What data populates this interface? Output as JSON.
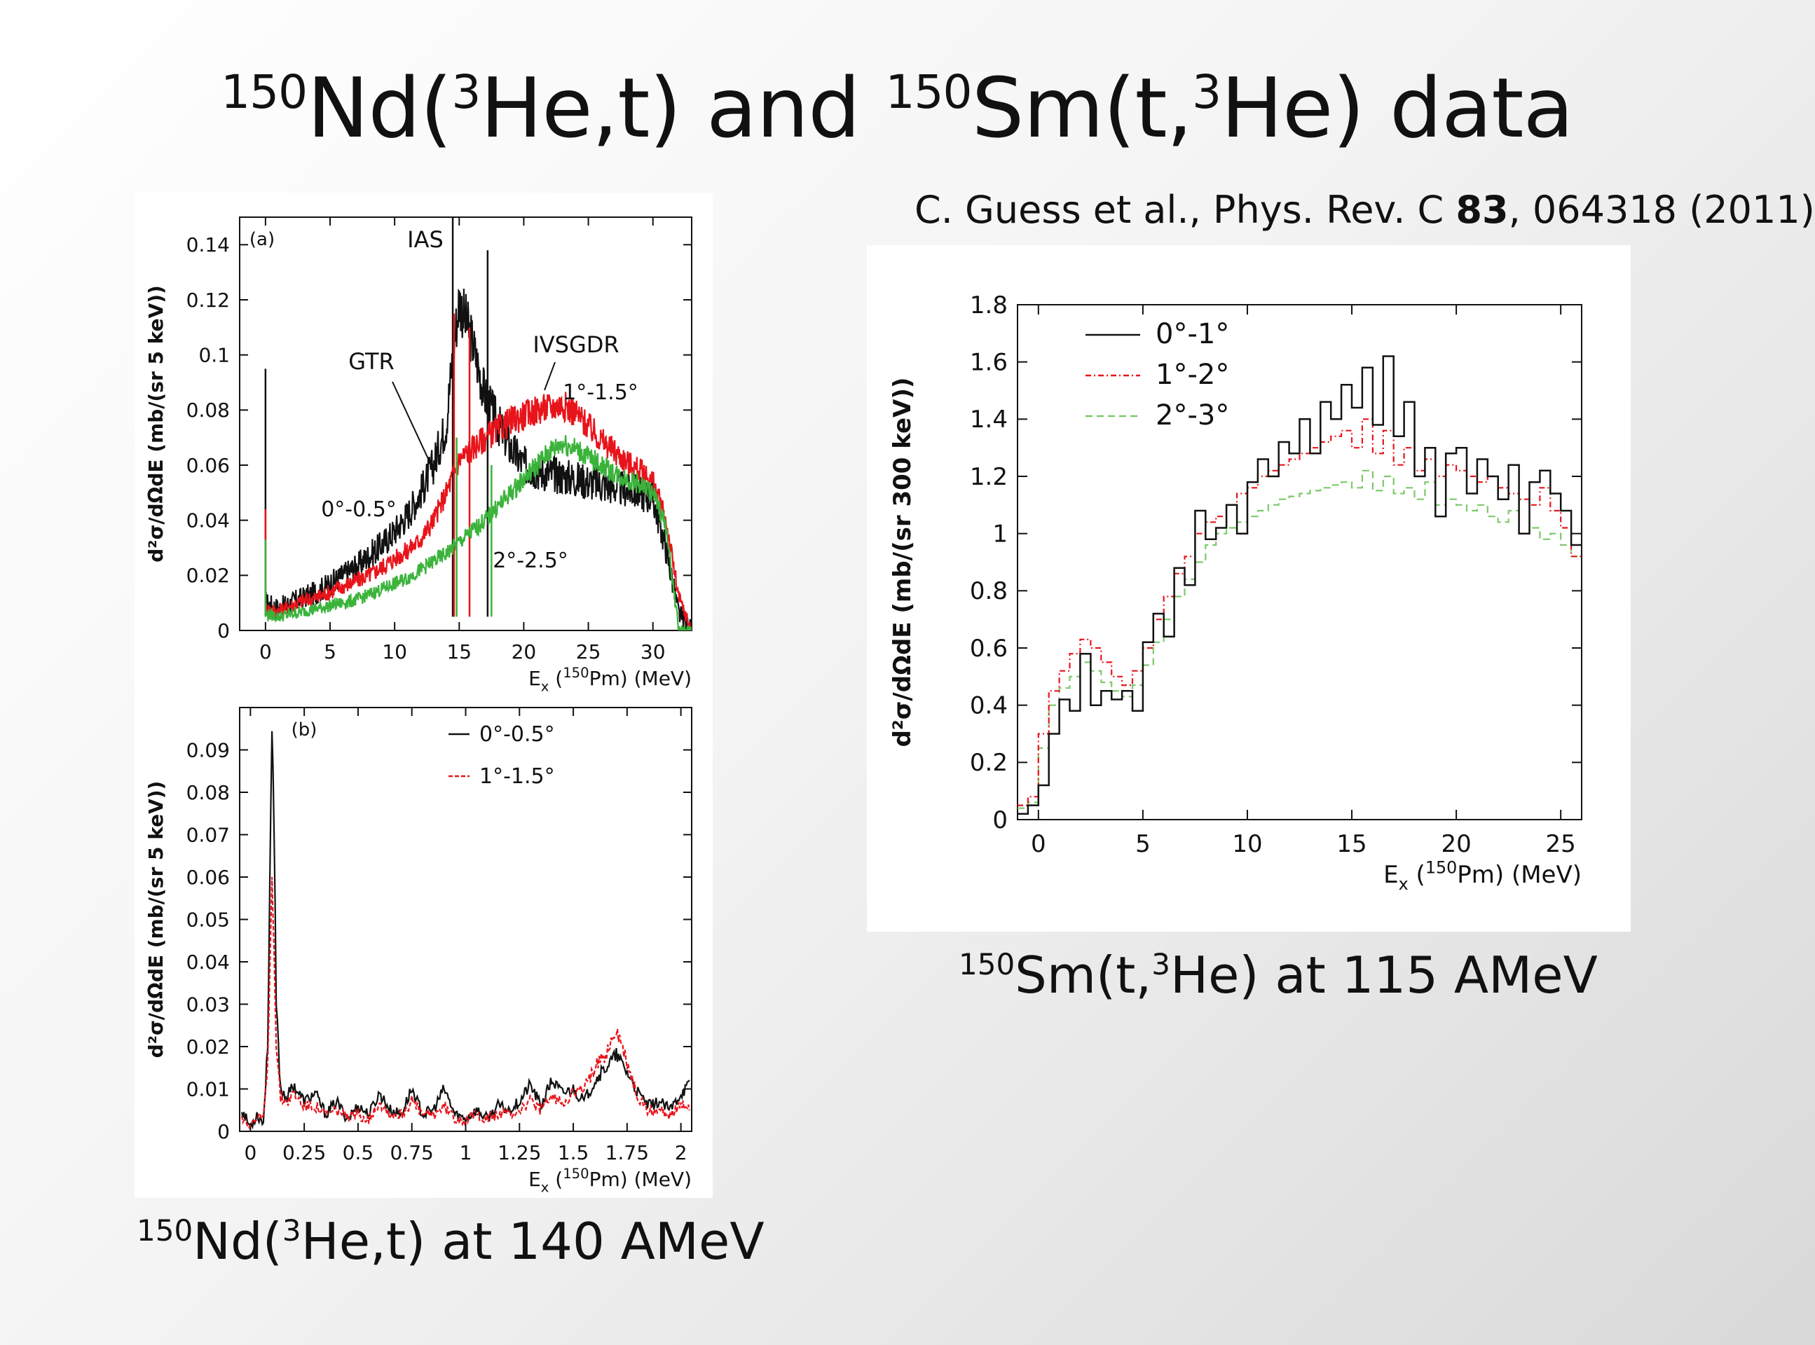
{
  "slide": {
    "title": {
      "part1_sup": "150",
      "part1": "Nd(",
      "part1_sup2": "3",
      "part1_tail": "He,t) and ",
      "part2_sup": "150",
      "part2": "Sm(t,",
      "part2_sup2": "3",
      "part2_tail": "He) data"
    },
    "citation": {
      "pre": "C. Guess et al., Phys. Rev. C ",
      "volume": "83",
      "post": ", 064318 (2011)"
    },
    "caption_left": {
      "sup": "150",
      "a": "Nd(",
      "sup2": "3",
      "b": "He,t) at 140 AMeV"
    },
    "caption_right": {
      "sup": "150",
      "a": "Sm(t,",
      "sup2": "3",
      "b": "He) at 115 AMeV"
    }
  },
  "colors": {
    "black": "#111111",
    "red": "#e8141b",
    "green": "#3bb33b",
    "green_dashed": "#7cc96a"
  },
  "chart_data": [
    {
      "id": "a",
      "type": "line",
      "panel_label": "(a)",
      "xlabel": "E",
      "xlabel_sub": "x",
      "xlabel_sup": "150",
      "xlabel_tail": "Pm) (MeV)",
      "ylabel": "d²σ/dΩdE (mb/(sr 5 keV))",
      "xlim": [
        -2,
        33
      ],
      "ylim": [
        0,
        0.15
      ],
      "xticks": [
        0,
        5,
        10,
        15,
        20,
        25,
        30
      ],
      "yticks": [
        0,
        0.02,
        0.04,
        0.06,
        0.08,
        0.1,
        0.12,
        0.14
      ],
      "ytick_labels": [
        "0",
        "0.02",
        "0.04",
        "0.06",
        "0.08",
        "0.1",
        "0.12",
        "0.14"
      ],
      "annotations": [
        "IAS",
        "GTR",
        "IVSGDR",
        "1°-1.5°",
        "0°-0.5°",
        "2°-2.5°"
      ],
      "series": [
        {
          "color": "black",
          "x": [
            0,
            1,
            2,
            3,
            4,
            5,
            6,
            7,
            8,
            9,
            10,
            11,
            12,
            13,
            14,
            14.5,
            15,
            16,
            17,
            18,
            19,
            20,
            21,
            22,
            23,
            24,
            25,
            26,
            27,
            28,
            29,
            30,
            31,
            32,
            33
          ],
          "y": [
            0.01,
            0.008,
            0.01,
            0.012,
            0.014,
            0.017,
            0.02,
            0.023,
            0.027,
            0.031,
            0.036,
            0.042,
            0.05,
            0.06,
            0.075,
            0.1,
            0.12,
            0.105,
            0.085,
            0.075,
            0.066,
            0.06,
            0.058,
            0.057,
            0.056,
            0.055,
            0.054,
            0.053,
            0.052,
            0.051,
            0.05,
            0.048,
            0.03,
            0.006,
            0
          ],
          "spikes": [
            {
              "x": 0,
              "y": 0.095
            },
            {
              "x": 14.5,
              "y": 0.15
            },
            {
              "x": 17.2,
              "y": 0.138
            }
          ]
        },
        {
          "color": "red",
          "x": [
            0,
            1,
            2,
            3,
            4,
            5,
            6,
            7,
            8,
            9,
            10,
            11,
            12,
            13,
            14,
            15,
            16,
            17,
            18,
            19,
            20,
            21,
            22,
            23,
            24,
            25,
            26,
            27,
            28,
            29,
            30,
            31,
            32,
            33
          ],
          "y": [
            0.008,
            0.007,
            0.009,
            0.011,
            0.012,
            0.014,
            0.016,
            0.018,
            0.02,
            0.023,
            0.026,
            0.029,
            0.033,
            0.04,
            0.05,
            0.062,
            0.066,
            0.07,
            0.073,
            0.076,
            0.078,
            0.08,
            0.081,
            0.082,
            0.079,
            0.074,
            0.069,
            0.065,
            0.061,
            0.058,
            0.054,
            0.04,
            0.012,
            0
          ],
          "spikes": [
            {
              "x": 0,
              "y": 0.044
            },
            {
              "x": 14.6,
              "y": 0.115
            },
            {
              "x": 15.8,
              "y": 0.11
            }
          ]
        },
        {
          "color": "green",
          "x": [
            0,
            1,
            2,
            3,
            4,
            5,
            6,
            7,
            8,
            9,
            10,
            11,
            12,
            13,
            14,
            15,
            16,
            17,
            18,
            19,
            20,
            21,
            22,
            23,
            24,
            25,
            26,
            27,
            28,
            29,
            30,
            31,
            32
          ],
          "y": [
            0.006,
            0.005,
            0.006,
            0.007,
            0.008,
            0.009,
            0.01,
            0.011,
            0.013,
            0.015,
            0.017,
            0.019,
            0.022,
            0.025,
            0.028,
            0.032,
            0.036,
            0.04,
            0.045,
            0.05,
            0.055,
            0.06,
            0.065,
            0.068,
            0.066,
            0.063,
            0.06,
            0.057,
            0.055,
            0.053,
            0.05,
            0.038,
            0
          ],
          "spikes": [
            {
              "x": 0,
              "y": 0.033
            },
            {
              "x": 14.8,
              "y": 0.07
            },
            {
              "x": 17.5,
              "y": 0.06
            }
          ]
        }
      ]
    },
    {
      "id": "b",
      "type": "line",
      "panel_label": "(b)",
      "xlabel": "E",
      "xlabel_sub": "x",
      "xlabel_sup": "150",
      "xlabel_tail": "Pm) (MeV)",
      "ylabel": "d²σ/dΩdE (mb/(sr 5 keV))",
      "xlim": [
        -0.05,
        2.05
      ],
      "ylim": [
        0,
        0.1
      ],
      "xticks": [
        0,
        0.25,
        0.5,
        0.75,
        1,
        1.25,
        1.5,
        1.75,
        2
      ],
      "xtick_labels": [
        "0",
        "0.25",
        "0.5",
        "0.75",
        "1",
        "1.25",
        "1.5",
        "1.75",
        "2"
      ],
      "yticks": [
        0,
        0.01,
        0.02,
        0.03,
        0.04,
        0.05,
        0.06,
        0.07,
        0.08,
        0.09
      ],
      "ytick_labels": [
        "0",
        "0.01",
        "0.02",
        "0.03",
        "0.04",
        "0.05",
        "0.06",
        "0.07",
        "0.08",
        "0.09"
      ],
      "legend": [
        "0°-0.5°",
        "1°-1.5°"
      ],
      "series": [
        {
          "name": "0°-0.5°",
          "color": "black",
          "x": [
            -0.04,
            0,
            0.03,
            0.06,
            0.08,
            0.09,
            0.1,
            0.11,
            0.12,
            0.14,
            0.17,
            0.2,
            0.25,
            0.3,
            0.35,
            0.4,
            0.45,
            0.5,
            0.55,
            0.6,
            0.65,
            0.7,
            0.75,
            0.8,
            0.85,
            0.9,
            0.95,
            1.0,
            1.05,
            1.1,
            1.15,
            1.2,
            1.25,
            1.3,
            1.35,
            1.4,
            1.45,
            1.5,
            1.55,
            1.6,
            1.65,
            1.7,
            1.75,
            1.8,
            1.85,
            1.9,
            1.95,
            2.0,
            2.04
          ],
          "y": [
            0.005,
            0.001,
            0.004,
            0.002,
            0.02,
            0.06,
            0.094,
            0.07,
            0.03,
            0.01,
            0.008,
            0.011,
            0.007,
            0.009,
            0.004,
            0.007,
            0.003,
            0.006,
            0.004,
            0.009,
            0.005,
            0.004,
            0.01,
            0.004,
            0.005,
            0.01,
            0.004,
            0.003,
            0.005,
            0.003,
            0.006,
            0.005,
            0.007,
            0.011,
            0.006,
            0.012,
            0.009,
            0.01,
            0.007,
            0.012,
            0.015,
            0.018,
            0.014,
            0.009,
            0.006,
            0.007,
            0.005,
            0.009,
            0.011
          ]
        },
        {
          "name": "1°-1.5°",
          "color": "red",
          "x": [
            -0.04,
            0,
            0.03,
            0.06,
            0.08,
            0.09,
            0.1,
            0.11,
            0.12,
            0.14,
            0.17,
            0.2,
            0.25,
            0.3,
            0.35,
            0.4,
            0.45,
            0.5,
            0.55,
            0.6,
            0.65,
            0.7,
            0.75,
            0.8,
            0.85,
            0.9,
            0.95,
            1.0,
            1.05,
            1.1,
            1.15,
            1.2,
            1.25,
            1.3,
            1.35,
            1.4,
            1.45,
            1.5,
            1.55,
            1.6,
            1.65,
            1.7,
            1.75,
            1.8,
            1.85,
            1.9,
            1.95,
            2.0,
            2.04
          ],
          "y": [
            0.003,
            0.002,
            0.003,
            0.003,
            0.015,
            0.04,
            0.059,
            0.045,
            0.02,
            0.008,
            0.007,
            0.009,
            0.006,
            0.006,
            0.004,
            0.005,
            0.003,
            0.004,
            0.003,
            0.007,
            0.004,
            0.004,
            0.007,
            0.004,
            0.004,
            0.006,
            0.003,
            0.003,
            0.004,
            0.003,
            0.004,
            0.004,
            0.005,
            0.007,
            0.005,
            0.008,
            0.007,
            0.009,
            0.01,
            0.015,
            0.018,
            0.024,
            0.016,
            0.008,
            0.005,
            0.005,
            0.004,
            0.006,
            0.006
          ]
        }
      ]
    },
    {
      "id": "c",
      "type": "line",
      "xlabel": "E",
      "xlabel_sub": "x",
      "xlabel_sup": "150",
      "xlabel_tail": "Pm) (MeV)",
      "ylabel": "d²σ/dΩdE (mb/(sr 300 keV))",
      "xlim": [
        -1,
        26
      ],
      "ylim": [
        0,
        1.8
      ],
      "xticks": [
        0,
        5,
        10,
        15,
        20,
        25
      ],
      "yticks": [
        0,
        0.2,
        0.4,
        0.6,
        0.8,
        1,
        1.2,
        1.4,
        1.6,
        1.8
      ],
      "ytick_labels": [
        "0",
        "0.2",
        "0.4",
        "0.6",
        "0.8",
        "1",
        "1.2",
        "1.4",
        "1.6",
        "1.8"
      ],
      "legend": [
        "0°-1°",
        "1°-2°",
        "2°-3°"
      ],
      "series": [
        {
          "name": "0°-1°",
          "color": "black",
          "style": "solid",
          "x": [
            -1,
            -0.5,
            0,
            0.5,
            1,
            1.5,
            2,
            2.5,
            3,
            3.5,
            4,
            4.5,
            5,
            5.5,
            6,
            6.5,
            7,
            7.5,
            8,
            8.5,
            9,
            9.5,
            10,
            10.5,
            11,
            11.5,
            12,
            12.5,
            13,
            13.5,
            14,
            14.5,
            15,
            15.5,
            16,
            16.5,
            17,
            17.5,
            18,
            18.5,
            19,
            19.5,
            20,
            20.5,
            21,
            21.5,
            22,
            22.5,
            23,
            23.5,
            24,
            24.5,
            25,
            25.5
          ],
          "y": [
            0.02,
            0.05,
            0.12,
            0.3,
            0.42,
            0.38,
            0.58,
            0.4,
            0.45,
            0.42,
            0.45,
            0.38,
            0.62,
            0.72,
            0.64,
            0.88,
            0.82,
            1.08,
            0.98,
            1.02,
            1.1,
            1.0,
            1.18,
            1.26,
            1.2,
            1.32,
            1.28,
            1.4,
            1.28,
            1.46,
            1.4,
            1.52,
            1.44,
            1.58,
            1.38,
            1.62,
            1.34,
            1.46,
            1.2,
            1.3,
            1.06,
            1.28,
            1.3,
            1.14,
            1.26,
            1.2,
            1.12,
            1.24,
            1.0,
            1.18,
            1.22,
            1.14,
            1.08,
            0.96
          ]
        },
        {
          "name": "1°-2°",
          "color": "red",
          "style": "dashdot",
          "x": [
            -1,
            -0.5,
            0,
            0.5,
            1,
            1.5,
            2,
            2.5,
            3,
            3.5,
            4,
            4.5,
            5,
            5.5,
            6,
            6.5,
            7,
            7.5,
            8,
            8.5,
            9,
            9.5,
            10,
            10.5,
            11,
            11.5,
            12,
            12.5,
            13,
            13.5,
            14,
            14.5,
            15,
            15.5,
            16,
            16.5,
            17,
            17.5,
            18,
            18.5,
            19,
            19.5,
            20,
            20.5,
            21,
            21.5,
            22,
            22.5,
            23,
            23.5,
            24,
            24.5,
            25,
            25.5
          ],
          "y": [
            0.05,
            0.08,
            0.3,
            0.45,
            0.52,
            0.58,
            0.63,
            0.6,
            0.55,
            0.5,
            0.47,
            0.52,
            0.6,
            0.7,
            0.78,
            0.86,
            0.92,
            1.0,
            1.04,
            1.06,
            1.1,
            1.14,
            1.16,
            1.2,
            1.22,
            1.24,
            1.26,
            1.28,
            1.3,
            1.32,
            1.34,
            1.36,
            1.3,
            1.4,
            1.28,
            1.36,
            1.24,
            1.3,
            1.22,
            1.26,
            1.2,
            1.24,
            1.22,
            1.2,
            1.18,
            1.2,
            1.16,
            1.14,
            1.12,
            1.1,
            1.16,
            1.08,
            1.02,
            0.92
          ]
        },
        {
          "name": "2°-3°",
          "color": "green_dashed",
          "style": "dashed",
          "x": [
            -1,
            -0.5,
            0,
            0.5,
            1,
            1.5,
            2,
            2.5,
            3,
            3.5,
            4,
            4.5,
            5,
            5.5,
            6,
            6.5,
            7,
            7.5,
            8,
            8.5,
            9,
            9.5,
            10,
            10.5,
            11,
            11.5,
            12,
            12.5,
            13,
            13.5,
            14,
            14.5,
            15,
            15.5,
            16,
            16.5,
            17,
            17.5,
            18,
            18.5,
            19,
            19.5,
            20,
            20.5,
            21,
            21.5,
            22,
            22.5,
            23,
            23.5,
            24,
            24.5,
            25,
            25.5
          ],
          "y": [
            0.04,
            0.06,
            0.25,
            0.4,
            0.46,
            0.5,
            0.55,
            0.52,
            0.48,
            0.45,
            0.43,
            0.47,
            0.54,
            0.62,
            0.7,
            0.78,
            0.84,
            0.9,
            0.96,
            1.0,
            1.02,
            1.04,
            1.06,
            1.08,
            1.1,
            1.12,
            1.13,
            1.14,
            1.15,
            1.16,
            1.17,
            1.18,
            1.16,
            1.22,
            1.15,
            1.2,
            1.14,
            1.16,
            1.12,
            1.18,
            1.1,
            1.12,
            1.1,
            1.08,
            1.1,
            1.06,
            1.04,
            1.08,
            1.0,
            1.02,
            0.98,
            1.0,
            0.96,
            0.92
          ]
        }
      ]
    }
  ]
}
